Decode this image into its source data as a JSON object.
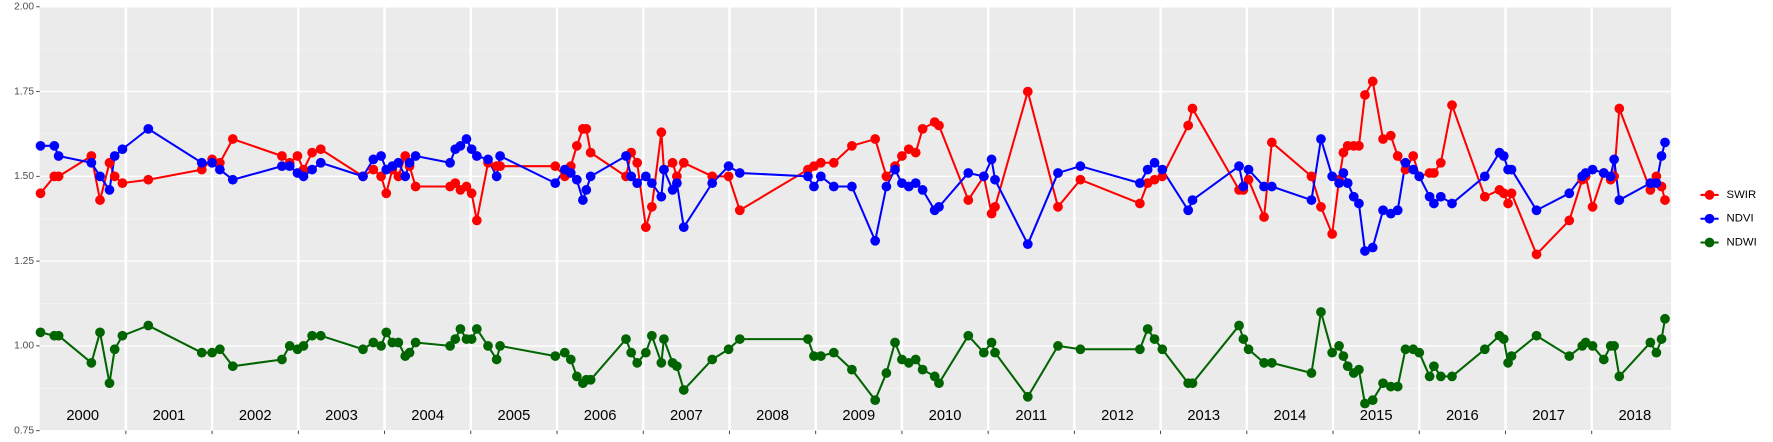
{
  "chart_data": {
    "type": "line",
    "x": [
      2000.01,
      2000.17,
      2000.22,
      2000.6,
      2000.7,
      2000.81,
      2000.87,
      2000.96,
      2001.26,
      2001.88,
      2002.0,
      2002.09,
      2002.24,
      2002.81,
      2002.9,
      2002.99,
      2003.06,
      2003.16,
      2003.26,
      2003.75,
      2003.87,
      2003.96,
      2004.02,
      2004.09,
      2004.16,
      2004.24,
      2004.29,
      2004.36,
      2004.76,
      2004.82,
      2004.88,
      2004.95,
      2005.01,
      2005.07,
      2005.2,
      2005.3,
      2005.34,
      2005.98,
      2006.09,
      2006.16,
      2006.23,
      2006.3,
      2006.34,
      2006.39,
      2006.8,
      2006.86,
      2006.93,
      2007.03,
      2007.1,
      2007.21,
      2007.24,
      2007.34,
      2007.39,
      2007.47,
      2007.8,
      2007.99,
      2008.12,
      2008.91,
      2008.98,
      2009.06,
      2009.21,
      2009.42,
      2009.69,
      2009.82,
      2009.92,
      2010.0,
      2010.08,
      2010.16,
      2010.24,
      2010.38,
      2010.43,
      2010.77,
      2010.95,
      2011.04,
      2011.08,
      2011.46,
      2011.81,
      2012.07,
      2012.76,
      2012.85,
      2012.93,
      2013.02,
      2013.32,
      2013.37,
      2013.91,
      2013.96,
      2014.02,
      2014.2,
      2014.29,
      2014.75,
      2014.86,
      2014.99,
      2015.07,
      2015.12,
      2015.17,
      2015.24,
      2015.3,
      2015.37,
      2015.46,
      2015.58,
      2015.67,
      2015.75,
      2015.84,
      2015.93,
      2016.0,
      2016.12,
      2016.17,
      2016.25,
      2016.38,
      2016.76,
      2016.93,
      2016.98,
      2017.03,
      2017.07,
      2017.36,
      2017.74,
      2017.89,
      2017.93,
      2018.01,
      2018.14,
      2018.22,
      2018.26,
      2018.32,
      2018.68,
      2018.75,
      2018.81,
      2018.85
    ],
    "series": [
      {
        "name": "SWIR",
        "color": "#ff0000",
        "values": [
          1.45,
          1.5,
          1.5,
          1.56,
          1.43,
          1.54,
          1.5,
          1.48,
          1.49,
          1.52,
          1.55,
          1.54,
          1.61,
          1.56,
          1.54,
          1.56,
          1.52,
          1.57,
          1.58,
          1.5,
          1.52,
          1.5,
          1.45,
          1.52,
          1.5,
          1.56,
          1.53,
          1.47,
          1.47,
          1.48,
          1.46,
          1.47,
          1.45,
          1.37,
          1.54,
          1.53,
          1.53,
          1.53,
          1.5,
          1.53,
          1.59,
          1.64,
          1.64,
          1.57,
          1.5,
          1.57,
          1.54,
          1.35,
          1.41,
          1.63,
          1.52,
          1.54,
          1.5,
          1.54,
          1.5,
          1.5,
          1.4,
          1.52,
          1.53,
          1.54,
          1.54,
          1.59,
          1.61,
          1.5,
          1.53,
          1.56,
          1.58,
          1.57,
          1.64,
          1.66,
          1.65,
          1.43,
          1.5,
          1.39,
          1.41,
          1.75,
          1.41,
          1.49,
          1.42,
          1.48,
          1.49,
          1.5,
          1.65,
          1.7,
          1.46,
          1.46,
          1.49,
          1.38,
          1.6,
          1.5,
          1.41,
          1.33,
          1.49,
          1.57,
          1.59,
          1.59,
          1.59,
          1.74,
          1.78,
          1.61,
          1.62,
          1.56,
          1.52,
          1.56,
          1.5,
          1.51,
          1.51,
          1.54,
          1.71,
          1.44,
          1.46,
          1.45,
          1.42,
          1.45,
          1.27,
          1.37,
          1.49,
          1.5,
          1.41,
          1.51,
          1.49,
          1.5,
          1.7,
          1.46,
          1.5,
          1.47,
          1.43
        ]
      },
      {
        "name": "NDVI",
        "color": "#0000ff",
        "values": [
          1.59,
          1.59,
          1.56,
          1.54,
          1.5,
          1.46,
          1.56,
          1.58,
          1.64,
          1.54,
          1.54,
          1.52,
          1.49,
          1.53,
          1.53,
          1.51,
          1.5,
          1.52,
          1.54,
          1.5,
          1.55,
          1.56,
          1.52,
          1.53,
          1.54,
          1.5,
          1.54,
          1.56,
          1.54,
          1.58,
          1.59,
          1.61,
          1.58,
          1.56,
          1.55,
          1.5,
          1.56,
          1.48,
          1.52,
          1.51,
          1.49,
          1.43,
          1.46,
          1.5,
          1.56,
          1.5,
          1.48,
          1.5,
          1.48,
          1.44,
          1.52,
          1.46,
          1.48,
          1.35,
          1.48,
          1.53,
          1.51,
          1.5,
          1.47,
          1.5,
          1.47,
          1.47,
          1.31,
          1.47,
          1.52,
          1.48,
          1.47,
          1.48,
          1.46,
          1.4,
          1.41,
          1.51,
          1.5,
          1.55,
          1.49,
          1.3,
          1.51,
          1.53,
          1.48,
          1.52,
          1.54,
          1.52,
          1.4,
          1.43,
          1.53,
          1.47,
          1.52,
          1.47,
          1.47,
          1.43,
          1.61,
          1.5,
          1.48,
          1.51,
          1.48,
          1.44,
          1.42,
          1.28,
          1.29,
          1.4,
          1.39,
          1.4,
          1.54,
          1.52,
          1.5,
          1.44,
          1.42,
          1.44,
          1.42,
          1.5,
          1.57,
          1.56,
          1.52,
          1.52,
          1.4,
          1.45,
          1.5,
          1.51,
          1.52,
          1.51,
          1.5,
          1.55,
          1.43,
          1.48,
          1.48,
          1.56,
          1.6
        ]
      },
      {
        "name": "NDWI",
        "color": "#006400",
        "values": [
          1.04,
          1.03,
          1.03,
          0.95,
          1.04,
          0.89,
          0.99,
          1.03,
          1.06,
          0.98,
          0.98,
          0.99,
          0.94,
          0.96,
          1.0,
          0.99,
          1.0,
          1.03,
          1.03,
          0.99,
          1.01,
          1.0,
          1.04,
          1.01,
          1.01,
          0.97,
          0.98,
          1.01,
          1.0,
          1.02,
          1.05,
          1.02,
          1.02,
          1.05,
          1.0,
          0.96,
          1.0,
          0.97,
          0.98,
          0.96,
          0.91,
          0.89,
          0.9,
          0.9,
          1.02,
          0.98,
          0.95,
          0.98,
          1.03,
          0.95,
          1.02,
          0.95,
          0.94,
          0.87,
          0.96,
          0.99,
          1.02,
          1.02,
          0.97,
          0.97,
          0.98,
          0.93,
          0.84,
          0.92,
          1.01,
          0.96,
          0.95,
          0.96,
          0.93,
          0.91,
          0.89,
          1.03,
          0.98,
          1.01,
          0.98,
          0.85,
          1.0,
          0.99,
          0.99,
          1.05,
          1.02,
          0.99,
          0.89,
          0.89,
          1.06,
          1.02,
          0.99,
          0.95,
          0.95,
          0.92,
          1.1,
          0.98,
          1.0,
          0.97,
          0.94,
          0.92,
          0.93,
          0.83,
          0.84,
          0.89,
          0.88,
          0.88,
          0.99,
          0.99,
          0.98,
          0.91,
          0.94,
          0.91,
          0.91,
          0.99,
          1.03,
          1.02,
          0.95,
          0.97,
          1.03,
          0.97,
          1.0,
          1.01,
          1.0,
          0.96,
          1.0,
          1.0,
          0.91,
          1.01,
          0.98,
          1.02,
          1.08
        ]
      }
    ],
    "xlim": [
      2000,
      2018.92
    ],
    "xticks": [
      2001,
      2002,
      2003,
      2004,
      2005,
      2006,
      2007,
      2008,
      2009,
      2010,
      2011,
      2012,
      2013,
      2014,
      2015,
      2016,
      2017,
      2018
    ],
    "ylim": [
      0.75,
      2.0
    ],
    "yticks": [
      0.75,
      {
        "value": 1.0,
        "label": "1.00"
      },
      {
        "value": 1.25,
        "label": "1.25"
      },
      {
        "value": 1.5,
        "label": "1.50"
      },
      {
        "value": 1.75,
        "label": "1.75"
      },
      {
        "value": 2.0,
        "label": "2.00"
      }
    ],
    "year_labels": [
      "2000",
      "2001",
      "2002",
      "2003",
      "2004",
      "2005",
      "2006",
      "2007",
      "2008",
      "2009",
      "2010",
      "2011",
      "2012",
      "2013",
      "2014",
      "2015",
      "2016",
      "2017",
      "2018"
    ],
    "grid": true,
    "legend": "right"
  }
}
